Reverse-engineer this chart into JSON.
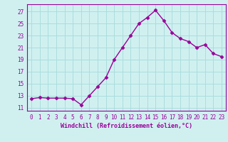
{
  "x": [
    0,
    1,
    2,
    3,
    4,
    5,
    6,
    7,
    8,
    9,
    10,
    11,
    12,
    13,
    14,
    15,
    16,
    17,
    18,
    19,
    20,
    21,
    22,
    23
  ],
  "y": [
    12.5,
    12.7,
    12.6,
    12.6,
    12.6,
    12.5,
    11.5,
    13.0,
    14.5,
    16.0,
    19.0,
    21.0,
    23.0,
    25.0,
    26.0,
    27.2,
    25.5,
    23.5,
    22.5,
    22.0,
    21.0,
    21.5,
    20.0,
    19.5
  ],
  "line_color": "#990099",
  "marker": "D",
  "marker_size": 2.5,
  "bg_color": "#d0f0f0",
  "grid_color": "#aadddd",
  "xlabel": "Windchill (Refroidissement éolien,°C)",
  "ylabel_ticks": [
    11,
    13,
    15,
    17,
    19,
    21,
    23,
    25,
    27
  ],
  "xlim": [
    -0.5,
    23.5
  ],
  "ylim": [
    10.5,
    28.2
  ],
  "xticks": [
    0,
    1,
    2,
    3,
    4,
    5,
    6,
    7,
    8,
    9,
    10,
    11,
    12,
    13,
    14,
    15,
    16,
    17,
    18,
    19,
    20,
    21,
    22,
    23
  ],
  "tick_color": "#990099",
  "label_color": "#990099",
  "label_fontsize": 6.0,
  "tick_fontsize": 5.5,
  "linewidth": 1.0
}
